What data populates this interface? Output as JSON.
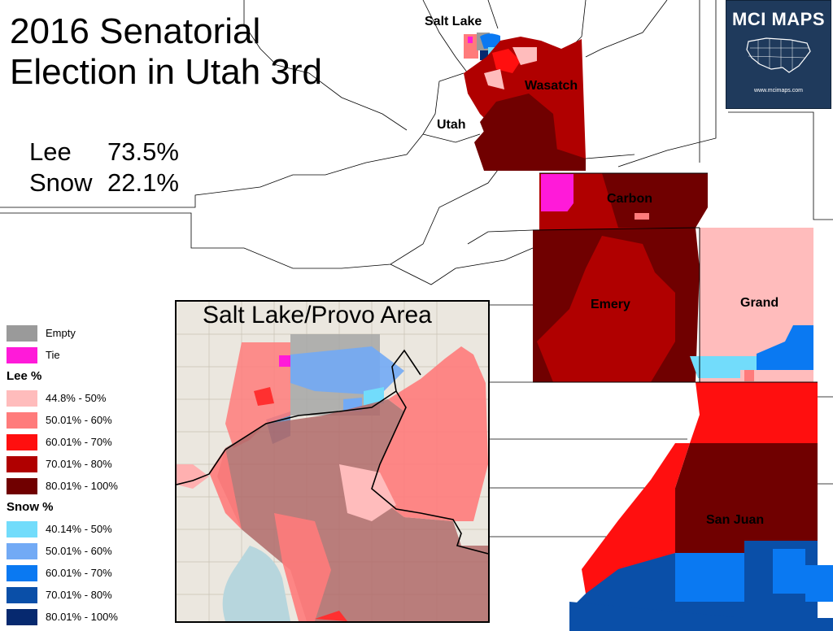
{
  "title": "2016 Senatorial Election in Utah 3rd",
  "title_line1": "2016 Senatorial",
  "title_line2": "Election in Utah 3rd",
  "results": [
    {
      "candidate": "Lee",
      "percent": "73.5%"
    },
    {
      "candidate": "Snow",
      "percent": "22.1%"
    }
  ],
  "county_labels": {
    "salt_lake": "Salt Lake",
    "utah": "Utah",
    "wasatch": "Wasatch",
    "carbon": "Carbon",
    "emery": "Emery",
    "grand": "Grand",
    "san_juan": "San Juan"
  },
  "inset_title": "Salt Lake/Provo Area",
  "logo": {
    "brand": "MCI MAPS",
    "url": "www.mcimaps.com"
  },
  "legend": {
    "misc": [
      {
        "label": "Empty",
        "color": "#9a9a9a"
      },
      {
        "label": "Tie",
        "color": "#ff1ad9"
      }
    ],
    "lee_heading": "Lee %",
    "lee": [
      {
        "label": "44.8% - 50%",
        "color": "#ffbcbc"
      },
      {
        "label": "50.01% - 60%",
        "color": "#ff7b7b"
      },
      {
        "label": "60.01% - 70%",
        "color": "#ff0f0f"
      },
      {
        "label": "70.01% - 80%",
        "color": "#b00000"
      },
      {
        "label": "80.01% - 100%",
        "color": "#700000"
      }
    ],
    "snow_heading": "Snow %",
    "snow": [
      {
        "label": "40.14% - 50%",
        "color": "#72dcfb"
      },
      {
        "label": "50.01% - 60%",
        "color": "#72aaf5"
      },
      {
        "label": "60.01% - 70%",
        "color": "#0a79f2"
      },
      {
        "label": "70.01% - 80%",
        "color": "#0a4fa8"
      },
      {
        "label": "80.01% - 100%",
        "color": "#06296f"
      }
    ]
  }
}
